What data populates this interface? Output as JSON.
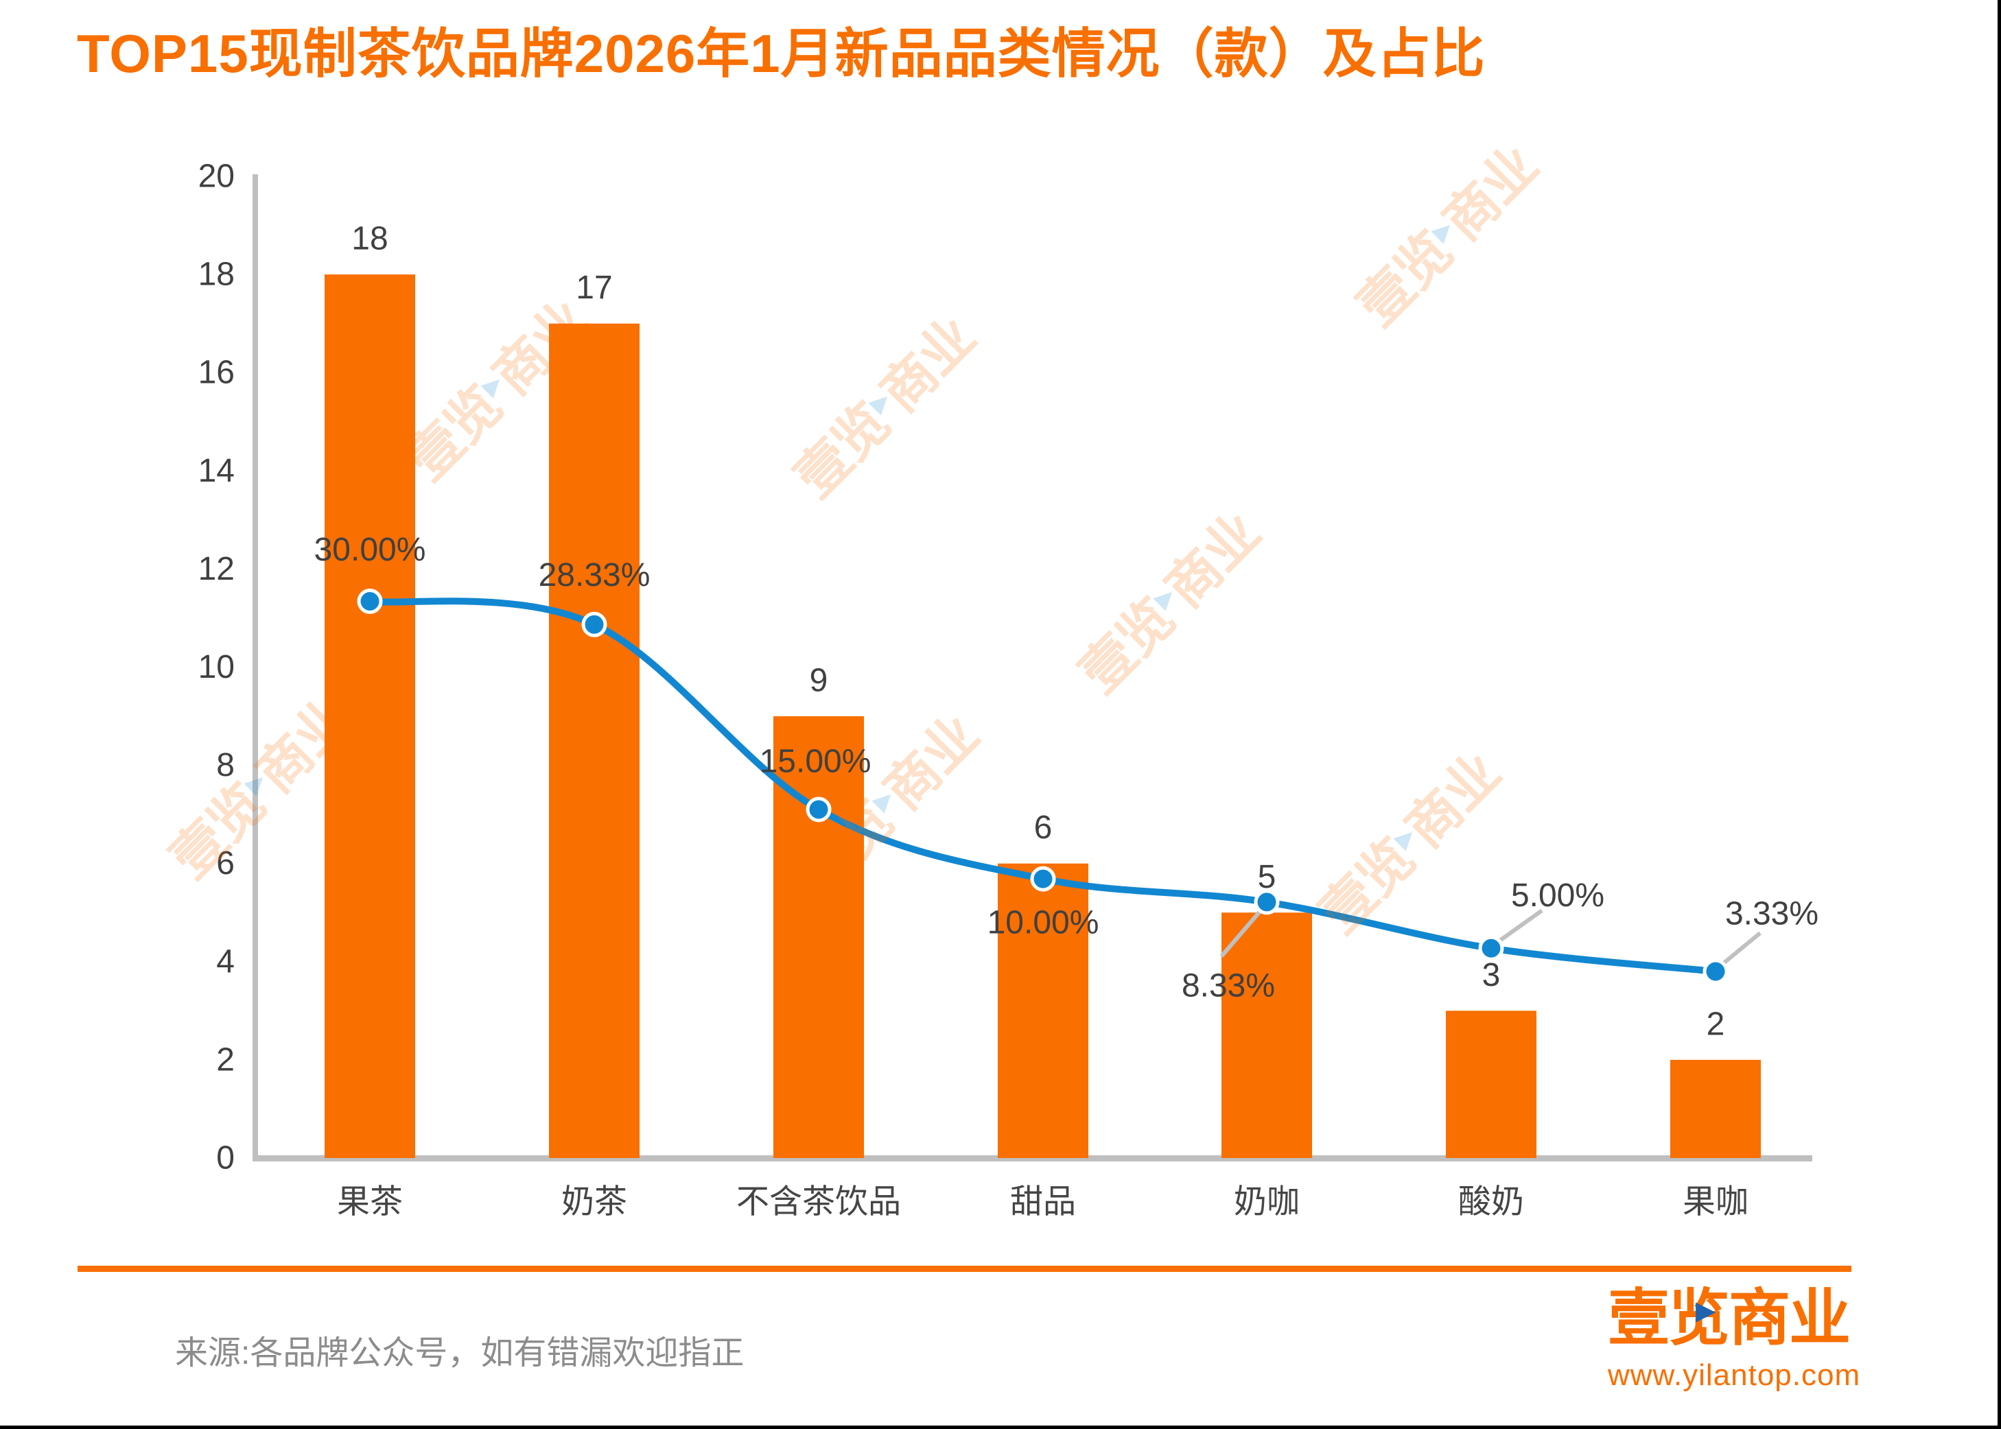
{
  "title": "TOP15现制茶饮品牌2026年1月新品品类情况（款）及占比",
  "source_note": "来源:各品牌公众号，如有错漏欢迎指正",
  "logo": {
    "text": "壹览商业",
    "url": "www.yilantop.com",
    "play_icon": "▶"
  },
  "watermark_text_left": "壹览",
  "watermark_text_right": "商业",
  "colors": {
    "orange": "#F96F00",
    "line_blue": "#1287D1",
    "logo_play_blue": "#2063AE",
    "axis_gray": "#BFBFBF",
    "leader_gray": "#C0C0C0",
    "label_dark": "#404040",
    "category_gray": "#454545",
    "source_gray": "#8C8C8C"
  },
  "chart_data": {
    "type": "bar+line",
    "title": "TOP15现制茶饮品牌2026年1月新品品类情况（款）及占比",
    "categories": [
      "果茶",
      "奶茶",
      "不含茶饮品",
      "甜品",
      "奶咖",
      "酸奶",
      "果咖"
    ],
    "series": [
      {
        "type": "bar",
        "values": [
          18,
          17,
          9,
          6,
          5,
          3,
          2
        ],
        "data_labels": [
          "18",
          "17",
          "9",
          "6",
          "5",
          "3",
          "2"
        ]
      },
      {
        "type": "line",
        "values_percent": [
          30.0,
          28.33,
          15.0,
          10.0,
          8.33,
          5.0,
          3.33
        ],
        "data_labels": [
          "30.00%",
          "28.33%",
          "15.00%",
          "10.00%",
          "8.33%",
          "5.00%",
          "3.33%"
        ]
      }
    ],
    "y_axis": {
      "min": 0,
      "max": 20,
      "step": 2,
      "tick_labels": [
        "0",
        "2",
        "4",
        "6",
        "8",
        "10",
        "12",
        "14",
        "16",
        "18",
        "20"
      ]
    },
    "x_axis_label": "",
    "y_axis_label": "",
    "grid": false,
    "legend": "none"
  }
}
